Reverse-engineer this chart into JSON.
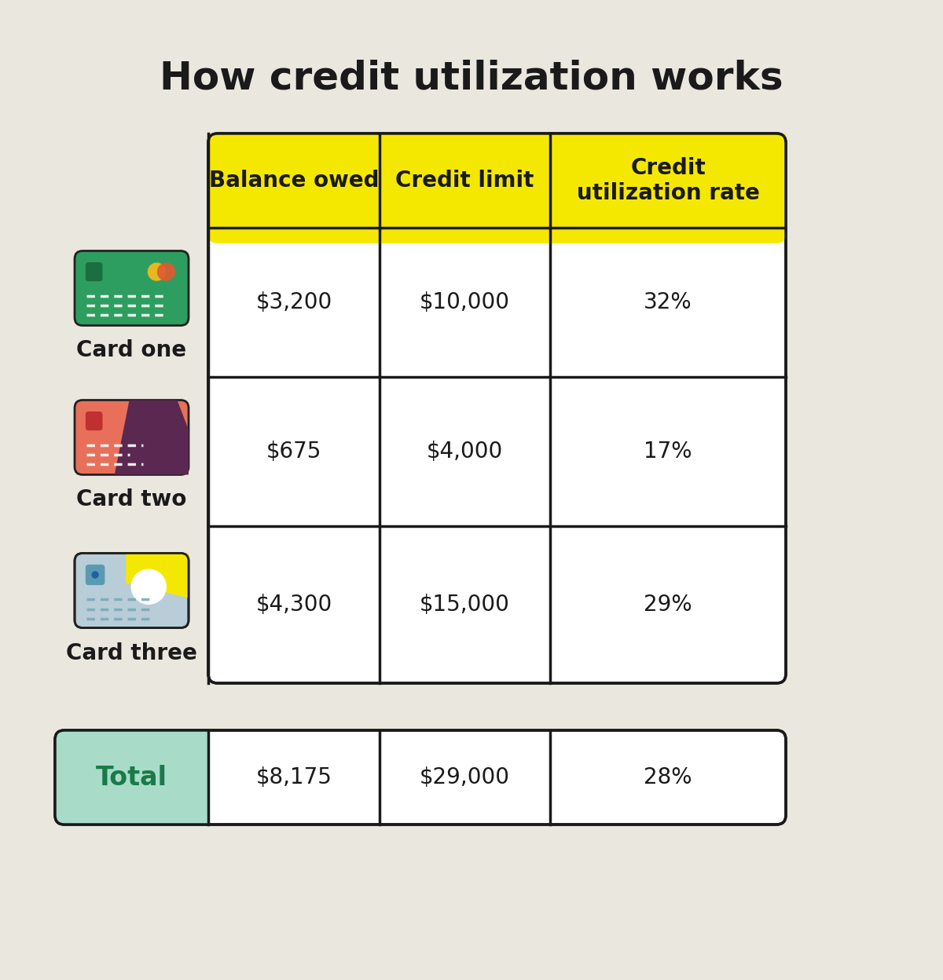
{
  "title": "How credit utilization works",
  "background_color": "#eae7df",
  "title_fontsize": 36,
  "title_color": "#1a1a1a",
  "header_bg": "#f5e800",
  "header_text_color": "#1a1a1a",
  "header_labels": [
    "Balance owed",
    "Credit limit",
    "Credit\nutilization rate"
  ],
  "row_labels": [
    "Card one",
    "Card two",
    "Card three"
  ],
  "row_card_colors": [
    "#2d9e5f",
    "#e8705a",
    "#b8d4de"
  ],
  "row_data": [
    [
      "$3,200",
      "$10,000",
      "32%"
    ],
    [
      "$675",
      "$4,000",
      "17%"
    ],
    [
      "$4,300",
      "$15,000",
      "29%"
    ]
  ],
  "total_label": "Total",
  "total_bg": "#a8dcc8",
  "total_text_color": "#1a7a4a",
  "total_data": [
    "$8,175",
    "$29,000",
    "28%"
  ],
  "cell_bg": "#ffffff",
  "border_color": "#1a1a1a",
  "data_fontsize": 20,
  "label_fontsize": 20,
  "header_fontsize": 20
}
